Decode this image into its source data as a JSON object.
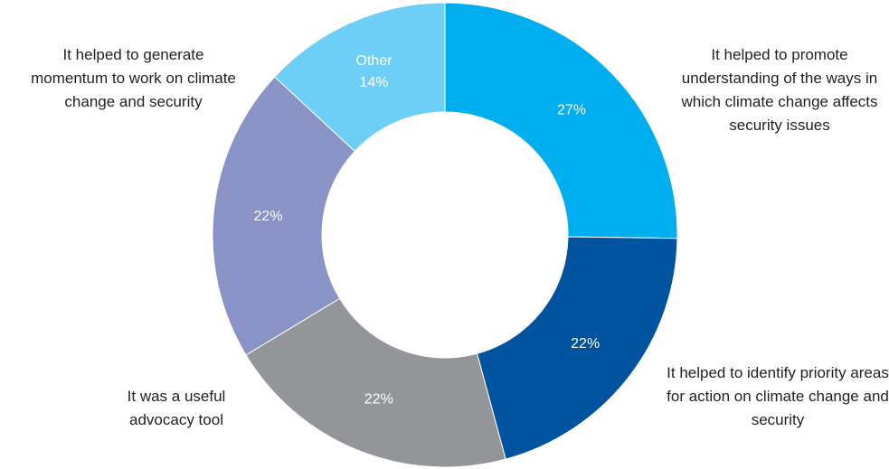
{
  "chart_data": {
    "type": "donut",
    "categories": [
      "It helped to promote understanding of the ways in which climate change affects security issues",
      "It helped to identify priority areas for action on climate change and security",
      "It was a useful advocacy tool",
      "It helped to generate momentum to work on climate change and security",
      "Other"
    ],
    "values": [
      27,
      22,
      22,
      22,
      14
    ],
    "value_labels": [
      "27%",
      "22%",
      "22%",
      "22%",
      "14%"
    ],
    "colors": [
      "#00aeef",
      "#00539f",
      "#939598",
      "#8993c6",
      "#6dcff6"
    ]
  }
}
